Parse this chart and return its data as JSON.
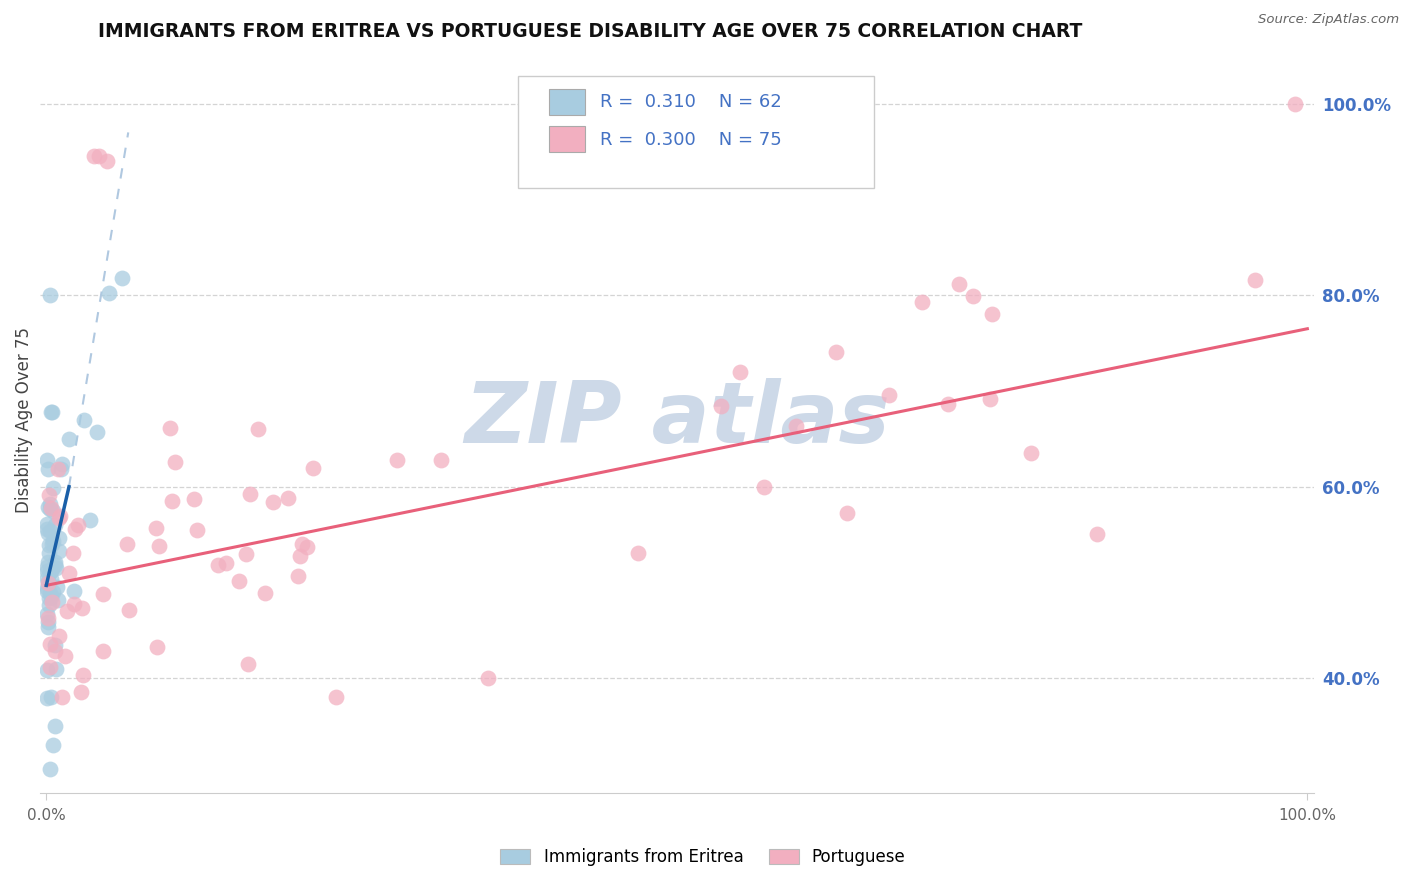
{
  "title": "IMMIGRANTS FROM ERITREA VS PORTUGUESE DISABILITY AGE OVER 75 CORRELATION CHART",
  "source": "Source: ZipAtlas.com",
  "ylabel": "Disability Age Over 75",
  "legend_label1": "Immigrants from Eritrea",
  "legend_label2": "Portuguese",
  "R1": 0.31,
  "N1": 62,
  "R2": 0.3,
  "N2": 75,
  "color_eritrea": "#a8cce0",
  "color_portuguese": "#f2afc0",
  "color_eritrea_line": "#1a5fa8",
  "color_eritrea_dashed": "#b0c8e0",
  "color_portuguese_line": "#e8607a",
  "background_color": "#ffffff",
  "watermark_color": "#cdd9e8",
  "grid_color": "#d0d0d0",
  "ytick_color": "#4472c4",
  "xlim": [
    -0.005,
    1.005
  ],
  "ylim": [
    0.28,
    1.06
  ],
  "yticks": [
    0.4,
    0.6,
    0.8,
    1.0
  ],
  "xticks": [
    0.0,
    1.0
  ],
  "portuguese_trend_x0": 0.0,
  "portuguese_trend_y0": 0.497,
  "portuguese_trend_x1": 1.0,
  "portuguese_trend_y1": 0.765,
  "eritrea_trend_solid_x0": 0.0,
  "eritrea_trend_solid_y0": 0.497,
  "eritrea_trend_solid_x1": 0.018,
  "eritrea_trend_solid_y1": 0.6,
  "eritrea_trend_dashed_x0": 0.018,
  "eritrea_trend_dashed_y0": 0.6,
  "eritrea_trend_dashed_x1": 0.065,
  "eritrea_trend_dashed_y1": 0.97
}
